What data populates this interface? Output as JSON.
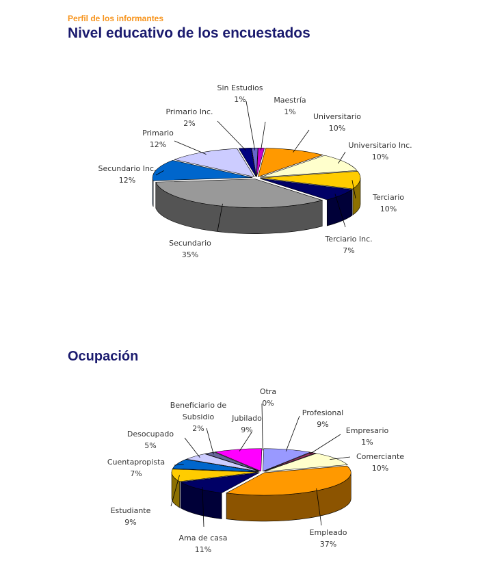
{
  "header": {
    "kicker": "Perfil de los informantes",
    "title": "Nivel educativo de los encuestados"
  },
  "section2": {
    "title": "Ocupación"
  },
  "chart_data": [
    {
      "type": "pie",
      "title": "Nivel educativo de los encuestados",
      "style": "3d-exploded",
      "slices": [
        {
          "label": "Maestría",
          "value": 1,
          "pct_label": "1%",
          "color": "#cc00cc"
        },
        {
          "label": "Universitario",
          "value": 10,
          "pct_label": "10%",
          "color": "#ff9900"
        },
        {
          "label": "Universitario Inc.",
          "value": 10,
          "pct_label": "10%",
          "color": "#ffffcc"
        },
        {
          "label": "Terciario",
          "value": 10,
          "pct_label": "10%",
          "color": "#ffcc00"
        },
        {
          "label": "Terciario Inc.",
          "value": 7,
          "pct_label": "7%",
          "color": "#000066"
        },
        {
          "label": "Secundario",
          "value": 35,
          "pct_label": "35%",
          "color": "#999999"
        },
        {
          "label": "Secundario Inc.",
          "value": 12,
          "pct_label": "12%",
          "color": "#0066cc"
        },
        {
          "label": "Primario",
          "value": 12,
          "pct_label": "12%",
          "color": "#ccccff"
        },
        {
          "label": "Primario Inc.",
          "value": 2,
          "pct_label": "2%",
          "color": "#000080"
        },
        {
          "label": "Sin Estudios",
          "value": 1,
          "pct_label": "1%",
          "color": "#6666cc"
        }
      ]
    },
    {
      "type": "pie",
      "title": "Ocupación",
      "style": "3d-exploded",
      "slices": [
        {
          "label": "Profesional",
          "value": 9,
          "pct_label": "9%",
          "color": "#9999ff"
        },
        {
          "label": "Empresario",
          "value": 1,
          "pct_label": "1%",
          "color": "#993366"
        },
        {
          "label": "Comerciante",
          "value": 10,
          "pct_label": "10%",
          "color": "#ffffcc"
        },
        {
          "label": "Empleado",
          "value": 37,
          "pct_label": "37%",
          "color": "#ff9900"
        },
        {
          "label": "Ama de casa",
          "value": 11,
          "pct_label": "11%",
          "color": "#000066"
        },
        {
          "label": "Estudiante",
          "value": 9,
          "pct_label": "9%",
          "color": "#ffcc00"
        },
        {
          "label": "Cuentapropista",
          "value": 7,
          "pct_label": "7%",
          "color": "#0066cc"
        },
        {
          "label": "Desocupado",
          "value": 5,
          "pct_label": "5%",
          "color": "#ccccff"
        },
        {
          "label": "Beneficiario de Subsidio",
          "label_lines": [
            "Beneficiario de",
            "Subsidio"
          ],
          "value": 2,
          "pct_label": "2%",
          "color": "#666699"
        },
        {
          "label": "Jubilado",
          "value": 9,
          "pct_label": "9%",
          "color": "#ff00ff"
        },
        {
          "label": "Otra",
          "value": 0,
          "pct_label": "0%",
          "color": "#dddddd"
        }
      ]
    }
  ]
}
